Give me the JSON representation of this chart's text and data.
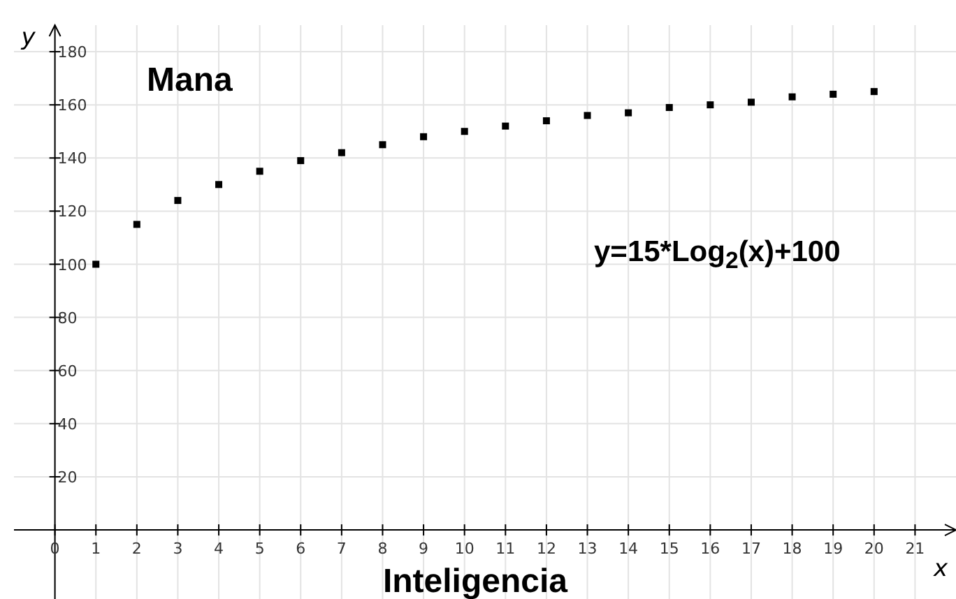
{
  "chart_data": {
    "type": "scatter",
    "title": "Mana",
    "xlabel": "x",
    "ylabel": "y",
    "annotations": [
      "Inteligencia",
      "y=15*Log$_{2}$(x)+100"
    ],
    "x": [
      1,
      2,
      3,
      4,
      5,
      6,
      7,
      8,
      9,
      10,
      11,
      12,
      13,
      14,
      15,
      16,
      17,
      18,
      19,
      20
    ],
    "series": [
      {
        "color": "#000000",
        "values": [
          100,
          115,
          124,
          130,
          135,
          139,
          142,
          145,
          148,
          150,
          152,
          154,
          156,
          157,
          159,
          160,
          161,
          163,
          164,
          165
        ]
      }
    ],
    "xlim": [
      -1,
      22
    ],
    "ylim": [
      -26,
      190
    ],
    "xticks": [
      0,
      1,
      2,
      3,
      4,
      5,
      6,
      7,
      8,
      9,
      10,
      11,
      12,
      13,
      14,
      15,
      16,
      17,
      18,
      19,
      20,
      21
    ],
    "yticks": [
      20,
      40,
      60,
      80,
      100,
      120,
      140,
      160,
      180
    ],
    "grid": true,
    "marker": "square"
  }
}
